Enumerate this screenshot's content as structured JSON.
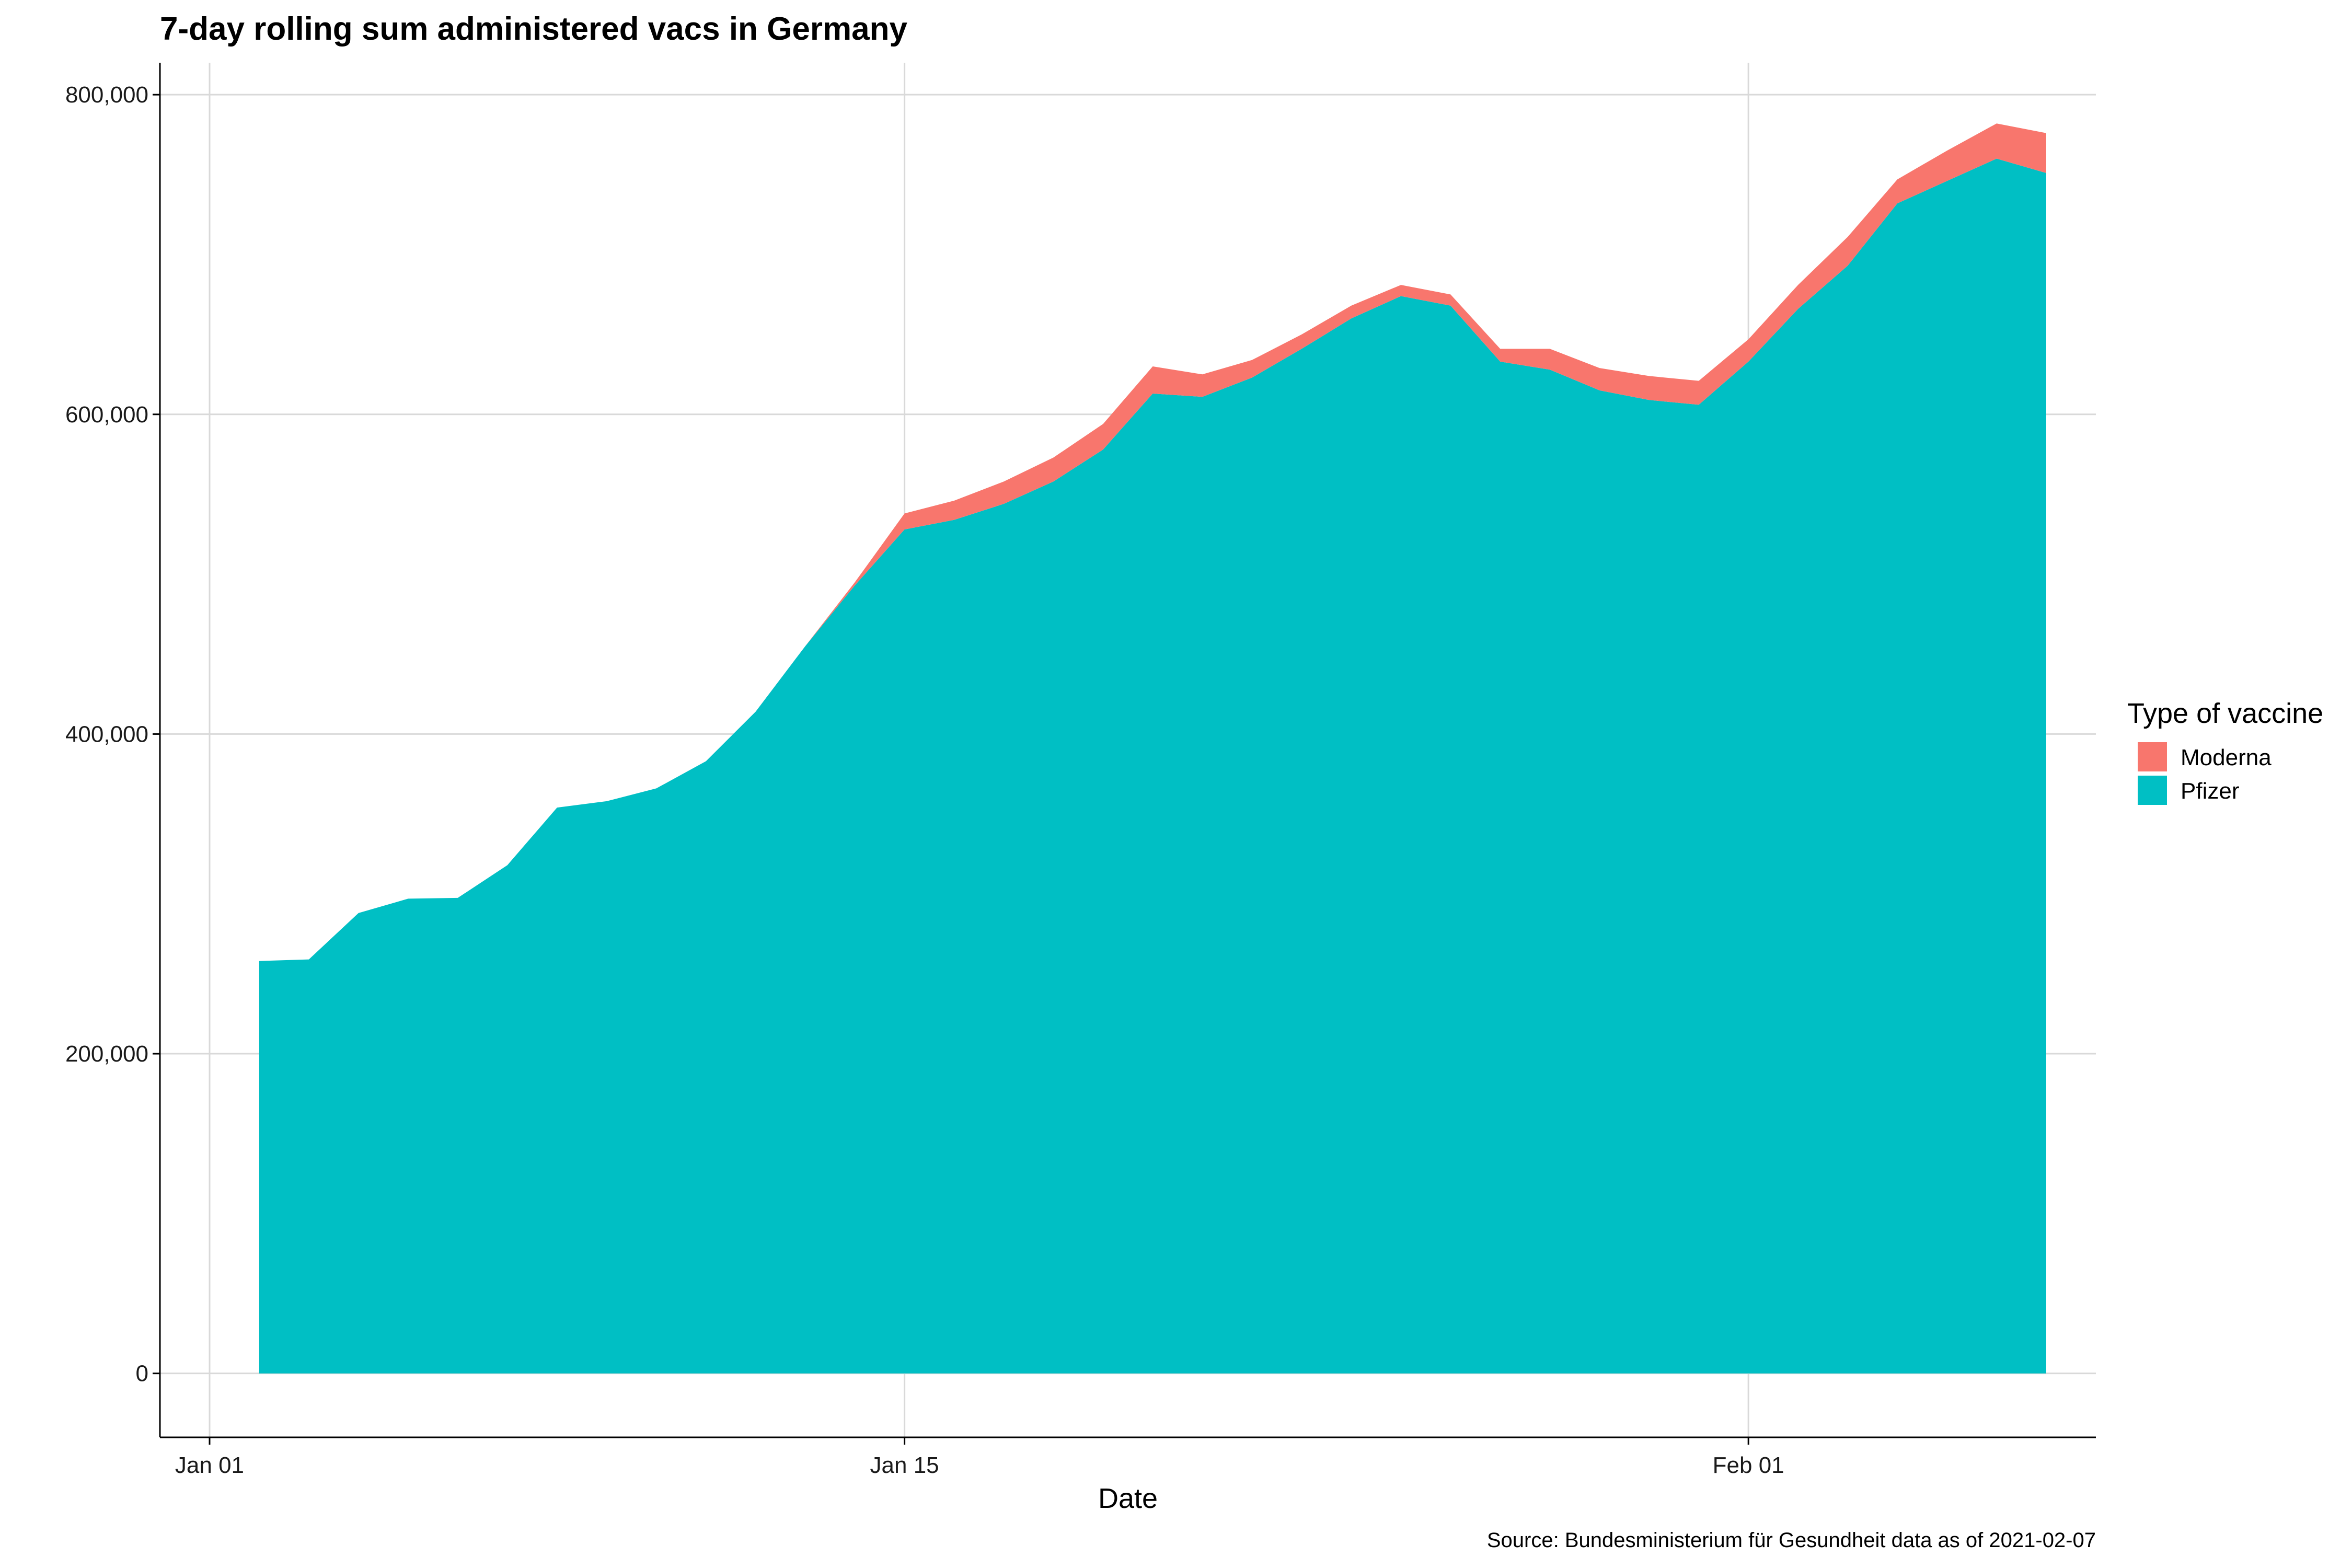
{
  "chart_data": {
    "type": "area",
    "stacked": true,
    "title": "7-day rolling sum administered vacs in Germany",
    "xlabel": "Date",
    "ylabel": "",
    "caption": "Source: Bundesministerium für Gesundheit data as of 2021-02-07",
    "x_ticks": [
      {
        "label": "Jan 01",
        "date": "2021-01-01"
      },
      {
        "label": "Jan 15",
        "date": "2021-01-15"
      },
      {
        "label": "Feb 01",
        "date": "2021-02-01"
      }
    ],
    "y_ticks": [
      {
        "label": "0",
        "value": 0
      },
      {
        "label": "200,000",
        "value": 200000
      },
      {
        "label": "400,000",
        "value": 400000
      },
      {
        "label": "600,000",
        "value": 600000
      },
      {
        "label": "800,000",
        "value": 800000
      }
    ],
    "xlim": [
      "2020-12-31",
      "2021-02-08"
    ],
    "ylim": [
      -40000,
      820000
    ],
    "grid": true,
    "legend": {
      "title": "Type of vaccine",
      "position": "right"
    },
    "x": [
      "2021-01-02",
      "2021-01-03",
      "2021-01-04",
      "2021-01-05",
      "2021-01-06",
      "2021-01-07",
      "2021-01-08",
      "2021-01-09",
      "2021-01-10",
      "2021-01-11",
      "2021-01-12",
      "2021-01-13",
      "2021-01-14",
      "2021-01-15",
      "2021-01-16",
      "2021-01-17",
      "2021-01-18",
      "2021-01-19",
      "2021-01-20",
      "2021-01-21",
      "2021-01-22",
      "2021-01-23",
      "2021-01-24",
      "2021-01-25",
      "2021-01-26",
      "2021-01-27",
      "2021-01-28",
      "2021-01-29",
      "2021-01-30",
      "2021-01-31",
      "2021-02-01",
      "2021-02-02",
      "2021-02-03",
      "2021-02-04",
      "2021-02-05",
      "2021-02-06",
      "2021-02-07"
    ],
    "series": [
      {
        "name": "Pfizer",
        "color": "#00BFC4",
        "values": [
          258000,
          259000,
          288000,
          297000,
          297500,
          318000,
          354000,
          358000,
          366000,
          383000,
          414000,
          455000,
          493000,
          528000,
          534000,
          544000,
          558000,
          578000,
          613000,
          611000,
          623000,
          641000,
          660000,
          674000,
          668000,
          633000,
          628000,
          615000,
          609000,
          606000,
          633000,
          666000,
          693000,
          732000,
          746000,
          760000,
          751000
        ]
      },
      {
        "name": "Moderna",
        "color": "#F8766D",
        "values": [
          0,
          0,
          0,
          0,
          0,
          0,
          0,
          0,
          0,
          0,
          0,
          0,
          2000,
          10000,
          12000,
          14000,
          15000,
          16000,
          17000,
          14000,
          11000,
          9000,
          8000,
          7000,
          7000,
          8000,
          13000,
          14000,
          15000,
          15000,
          14000,
          15000,
          18000,
          15000,
          19000,
          22000,
          25000
        ]
      }
    ]
  }
}
